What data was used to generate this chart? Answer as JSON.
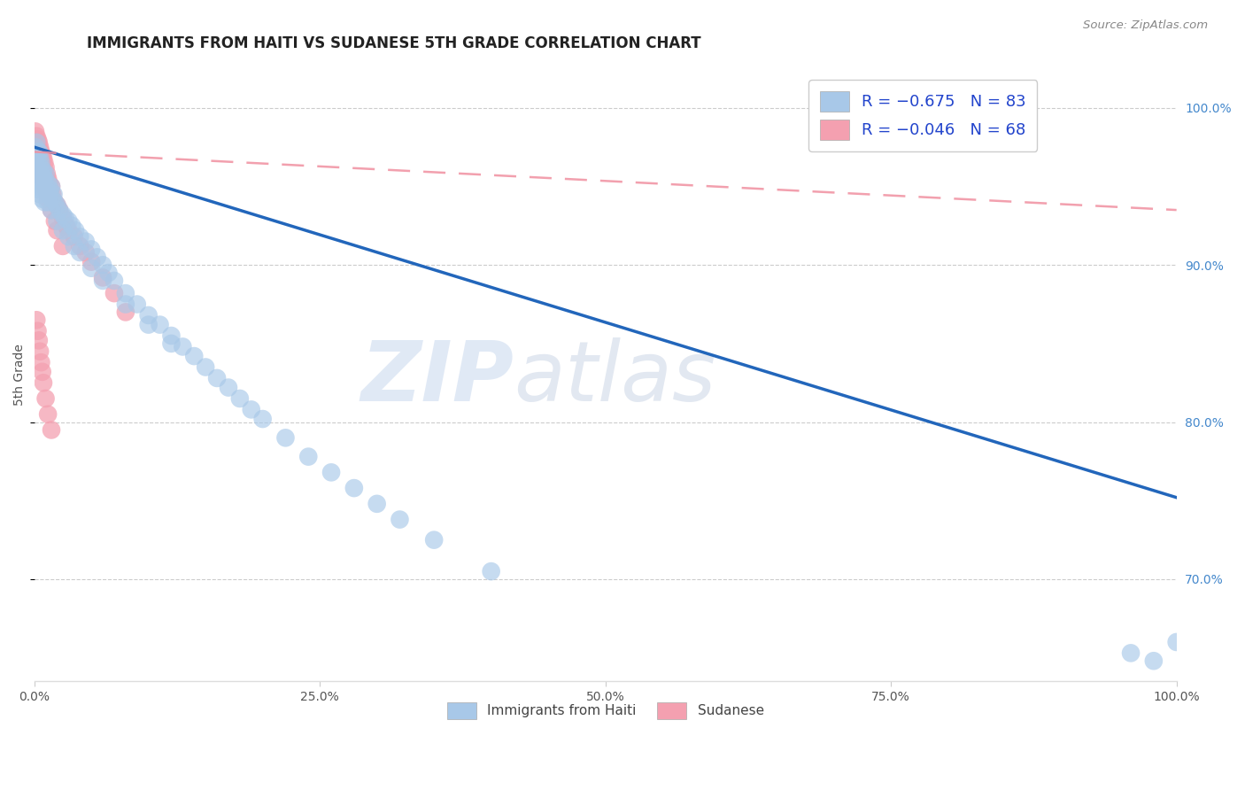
{
  "title": "IMMIGRANTS FROM HAITI VS SUDANESE 5TH GRADE CORRELATION CHART",
  "source": "Source: ZipAtlas.com",
  "ylabel": "5th Grade",
  "blue_color": "#a8c8e8",
  "pink_color": "#f4a0b0",
  "blue_line_color": "#2266bb",
  "pink_line_color": "#f090a0",
  "watermark_zip": "ZIP",
  "watermark_atlas": "atlas",
  "legend_label1": "Immigrants from Haiti",
  "legend_label2": "Sudanese",
  "blue_line_x": [
    0.0,
    1.0
  ],
  "blue_line_y": [
    0.975,
    0.752
  ],
  "pink_line_x": [
    0.0,
    1.0
  ],
  "pink_line_y": [
    0.972,
    0.935
  ],
  "yticks": [
    0.7,
    0.8,
    0.9,
    1.0
  ],
  "ytick_labels": [
    "70.0%",
    "80.0%",
    "90.0%",
    "100.0%"
  ],
  "xticks": [
    0.0,
    0.25,
    0.5,
    0.75,
    1.0
  ],
  "xtick_labels": [
    "0.0%",
    "25.0%",
    "50.0%",
    "75.0%",
    "100.0%"
  ],
  "xlim": [
    0.0,
    1.0
  ],
  "ylim": [
    0.635,
    1.025
  ],
  "blue_scatter_x": [
    0.001,
    0.002,
    0.002,
    0.003,
    0.003,
    0.003,
    0.004,
    0.004,
    0.004,
    0.005,
    0.005,
    0.005,
    0.006,
    0.006,
    0.007,
    0.007,
    0.008,
    0.008,
    0.009,
    0.009,
    0.01,
    0.011,
    0.012,
    0.013,
    0.014,
    0.015,
    0.016,
    0.017,
    0.018,
    0.02,
    0.022,
    0.025,
    0.027,
    0.03,
    0.033,
    0.036,
    0.04,
    0.045,
    0.05,
    0.055,
    0.06,
    0.065,
    0.07,
    0.08,
    0.09,
    0.1,
    0.11,
    0.12,
    0.13,
    0.14,
    0.15,
    0.16,
    0.17,
    0.18,
    0.19,
    0.2,
    0.22,
    0.24,
    0.26,
    0.28,
    0.3,
    0.32,
    0.35,
    0.4,
    0.004,
    0.006,
    0.008,
    0.01,
    0.012,
    0.015,
    0.02,
    0.025,
    0.03,
    0.035,
    0.04,
    0.05,
    0.06,
    0.08,
    0.1,
    0.12,
    0.96,
    0.98,
    1.0
  ],
  "blue_scatter_y": [
    0.975,
    0.978,
    0.965,
    0.97,
    0.96,
    0.958,
    0.972,
    0.955,
    0.948,
    0.968,
    0.952,
    0.945,
    0.965,
    0.95,
    0.958,
    0.942,
    0.96,
    0.948,
    0.955,
    0.94,
    0.958,
    0.95,
    0.952,
    0.945,
    0.948,
    0.95,
    0.942,
    0.945,
    0.94,
    0.938,
    0.935,
    0.932,
    0.93,
    0.928,
    0.925,
    0.922,
    0.918,
    0.915,
    0.91,
    0.905,
    0.9,
    0.895,
    0.89,
    0.882,
    0.875,
    0.868,
    0.862,
    0.855,
    0.848,
    0.842,
    0.835,
    0.828,
    0.822,
    0.815,
    0.808,
    0.802,
    0.79,
    0.778,
    0.768,
    0.758,
    0.748,
    0.738,
    0.725,
    0.705,
    0.972,
    0.962,
    0.955,
    0.948,
    0.94,
    0.935,
    0.928,
    0.922,
    0.918,
    0.912,
    0.908,
    0.898,
    0.89,
    0.875,
    0.862,
    0.85,
    0.653,
    0.648,
    0.66
  ],
  "pink_scatter_x": [
    0.001,
    0.001,
    0.002,
    0.002,
    0.002,
    0.003,
    0.003,
    0.003,
    0.004,
    0.004,
    0.004,
    0.005,
    0.005,
    0.005,
    0.006,
    0.006,
    0.007,
    0.007,
    0.007,
    0.008,
    0.008,
    0.009,
    0.009,
    0.01,
    0.01,
    0.011,
    0.012,
    0.013,
    0.014,
    0.015,
    0.016,
    0.018,
    0.02,
    0.022,
    0.025,
    0.028,
    0.03,
    0.035,
    0.04,
    0.045,
    0.05,
    0.06,
    0.07,
    0.08,
    0.002,
    0.003,
    0.004,
    0.005,
    0.006,
    0.007,
    0.008,
    0.009,
    0.01,
    0.012,
    0.015,
    0.018,
    0.02,
    0.025,
    0.002,
    0.003,
    0.004,
    0.005,
    0.006,
    0.007,
    0.008,
    0.01,
    0.012,
    0.015
  ],
  "pink_scatter_y": [
    0.985,
    0.978,
    0.982,
    0.975,
    0.968,
    0.98,
    0.972,
    0.965,
    0.978,
    0.97,
    0.962,
    0.975,
    0.968,
    0.96,
    0.972,
    0.965,
    0.97,
    0.962,
    0.955,
    0.968,
    0.96,
    0.965,
    0.958,
    0.962,
    0.955,
    0.958,
    0.955,
    0.952,
    0.948,
    0.95,
    0.945,
    0.94,
    0.938,
    0.935,
    0.93,
    0.925,
    0.922,
    0.918,
    0.912,
    0.908,
    0.902,
    0.892,
    0.882,
    0.87,
    0.975,
    0.972,
    0.968,
    0.965,
    0.962,
    0.958,
    0.955,
    0.952,
    0.948,
    0.942,
    0.935,
    0.928,
    0.922,
    0.912,
    0.865,
    0.858,
    0.852,
    0.845,
    0.838,
    0.832,
    0.825,
    0.815,
    0.805,
    0.795
  ]
}
